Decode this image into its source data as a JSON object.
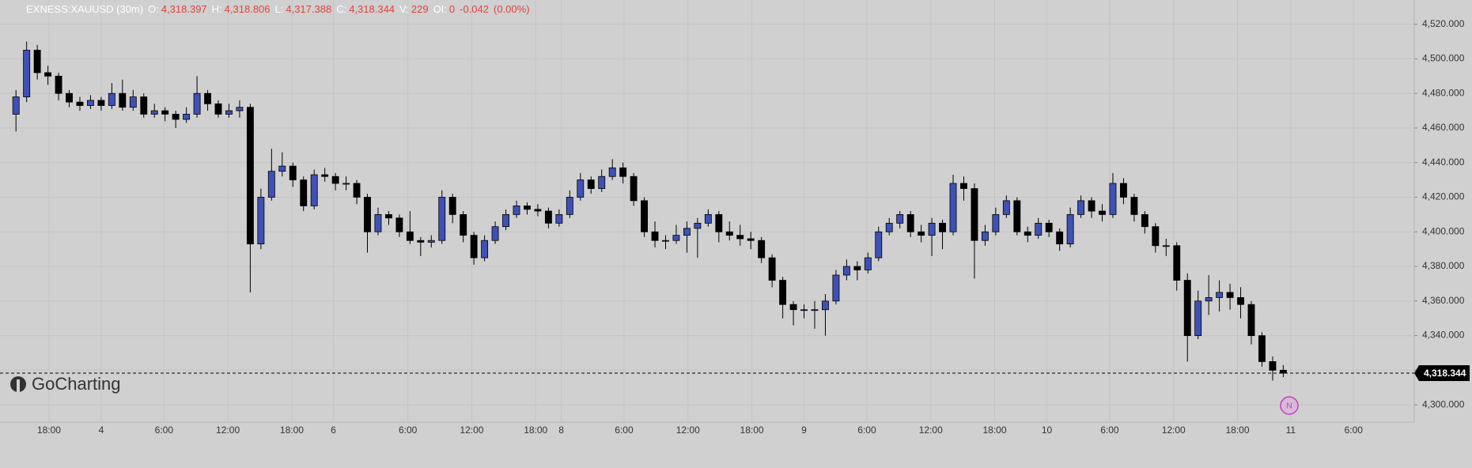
{
  "chart_data": {
    "type": "candlestick",
    "symbol": "EXNESS:XAUUSD (30m)",
    "quote": [
      {
        "label": "O:",
        "value": "4,318.397"
      },
      {
        "label": "H:",
        "value": "4,318.806"
      },
      {
        "label": "L:",
        "value": "4,317.388"
      },
      {
        "label": "C:",
        "value": "4,318.344"
      },
      {
        "label": "V:",
        "value": "229"
      },
      {
        "label": "OI:",
        "value": "0"
      }
    ],
    "change": "-0.042",
    "change_pct": "(0.00%)",
    "up_color": "#3f51b5",
    "down_color": "#000000",
    "grid": true,
    "ylim": [
      4290,
      4534
    ],
    "yticks": [
      {
        "value": 4300,
        "label": "4,300.000"
      },
      {
        "value": 4320,
        "label": "4,320.000"
      },
      {
        "value": 4340,
        "label": "4,340.000"
      },
      {
        "value": 4360,
        "label": "4,360.000"
      },
      {
        "value": 4380,
        "label": "4,380.000"
      },
      {
        "value": 4400,
        "label": "4,400.000"
      },
      {
        "value": 4420,
        "label": "4,420.000"
      },
      {
        "value": 4440,
        "label": "4,440.000"
      },
      {
        "value": 4460,
        "label": "4,460.000"
      },
      {
        "value": 4480,
        "label": "4,480.000"
      },
      {
        "value": 4500,
        "label": "4,500.000"
      },
      {
        "value": 4520,
        "label": "4,520.000"
      }
    ],
    "xlim": [
      -1.5,
      131.3
    ],
    "xticks": [
      {
        "value": 3.1,
        "label": "18:00"
      },
      {
        "value": 8.0,
        "label": "4"
      },
      {
        "value": 13.9,
        "label": "6:00"
      },
      {
        "value": 19.9,
        "label": "12:00"
      },
      {
        "value": 25.9,
        "label": "18:00"
      },
      {
        "value": 29.8,
        "label": "6"
      },
      {
        "value": 36.8,
        "label": "6:00"
      },
      {
        "value": 42.8,
        "label": "12:00"
      },
      {
        "value": 48.8,
        "label": "18:00"
      },
      {
        "value": 51.2,
        "label": "8"
      },
      {
        "value": 57.1,
        "label": "6:00"
      },
      {
        "value": 63.1,
        "label": "12:00"
      },
      {
        "value": 69.1,
        "label": "18:00"
      },
      {
        "value": 74.0,
        "label": "9"
      },
      {
        "value": 79.9,
        "label": "6:00"
      },
      {
        "value": 85.9,
        "label": "12:00"
      },
      {
        "value": 91.9,
        "label": "18:00"
      },
      {
        "value": 96.8,
        "label": "10"
      },
      {
        "value": 102.7,
        "label": "6:00"
      },
      {
        "value": 108.7,
        "label": "12:00"
      },
      {
        "value": 114.7,
        "label": "18:00"
      },
      {
        "value": 119.7,
        "label": "11"
      },
      {
        "value": 125.6,
        "label": "6:00"
      }
    ],
    "last_price": {
      "value": 4318.344,
      "label": "4,318.344"
    },
    "ohlc": [
      [
        4468,
        4482,
        4458,
        4478
      ],
      [
        4478,
        4510,
        4475,
        4505
      ],
      [
        4505,
        4508,
        4488,
        4492
      ],
      [
        4492,
        4496,
        4485,
        4490
      ],
      [
        4490,
        4492,
        4476,
        4480
      ],
      [
        4480,
        4482,
        4472,
        4475
      ],
      [
        4475,
        4478,
        4470,
        4473
      ],
      [
        4473,
        4479,
        4471,
        4476
      ],
      [
        4476,
        4478,
        4470,
        4473
      ],
      [
        4473,
        4486,
        4471,
        4480
      ],
      [
        4480,
        4488,
        4470,
        4472
      ],
      [
        4472,
        4482,
        4470,
        4478
      ],
      [
        4478,
        4480,
        4466,
        4468
      ],
      [
        4468,
        4474,
        4466,
        4470
      ],
      [
        4470,
        4472,
        4464,
        4468
      ],
      [
        4468,
        4470,
        4460,
        4465
      ],
      [
        4465,
        4472,
        4463,
        4468
      ],
      [
        4468,
        4490,
        4466,
        4480
      ],
      [
        4480,
        4482,
        4470,
        4474
      ],
      [
        4474,
        4476,
        4466,
        4468
      ],
      [
        4468,
        4474,
        4466,
        4470
      ],
      [
        4470,
        4476,
        4466,
        4472
      ],
      [
        4472,
        4474,
        4365,
        4393
      ],
      [
        4393,
        4425,
        4390,
        4420
      ],
      [
        4420,
        4448,
        4418,
        4435
      ],
      [
        4435,
        4446,
        4432,
        4438
      ],
      [
        4438,
        4440,
        4426,
        4430
      ],
      [
        4430,
        4432,
        4412,
        4415
      ],
      [
        4415,
        4436,
        4413,
        4433
      ],
      [
        4433,
        4437,
        4429,
        4432
      ],
      [
        4432,
        4434,
        4424,
        4428
      ],
      [
        4428,
        4432,
        4424,
        4428
      ],
      [
        4428,
        4430,
        4416,
        4420
      ],
      [
        4420,
        4422,
        4388,
        4400
      ],
      [
        4400,
        4414,
        4398,
        4410
      ],
      [
        4410,
        4412,
        4404,
        4408
      ],
      [
        4408,
        4410,
        4397,
        4400
      ],
      [
        4400,
        4412,
        4393,
        4395
      ],
      [
        4395,
        4397,
        4386,
        4394
      ],
      [
        4394,
        4398,
        4391,
        4395
      ],
      [
        4395,
        4424,
        4393,
        4420
      ],
      [
        4420,
        4422,
        4405,
        4410
      ],
      [
        4410,
        4412,
        4394,
        4398
      ],
      [
        4398,
        4400,
        4381,
        4385
      ],
      [
        4385,
        4398,
        4383,
        4395
      ],
      [
        4395,
        4406,
        4393,
        4403
      ],
      [
        4403,
        4413,
        4401,
        4410
      ],
      [
        4410,
        4418,
        4408,
        4415
      ],
      [
        4415,
        4417,
        4410,
        4413
      ],
      [
        4413,
        4416,
        4409,
        4412
      ],
      [
        4412,
        4414,
        4402,
        4405
      ],
      [
        4405,
        4413,
        4403,
        4410
      ],
      [
        4410,
        4424,
        4408,
        4420
      ],
      [
        4420,
        4434,
        4418,
        4430
      ],
      [
        4430,
        4432,
        4422,
        4425
      ],
      [
        4425,
        4436,
        4423,
        4432
      ],
      [
        4432,
        4442,
        4430,
        4437
      ],
      [
        4437,
        4440,
        4428,
        4432
      ],
      [
        4432,
        4434,
        4415,
        4418
      ],
      [
        4418,
        4420,
        4397,
        4400
      ],
      [
        4400,
        4406,
        4391,
        4395
      ],
      [
        4395,
        4398,
        4390,
        4395
      ],
      [
        4395,
        4404,
        4393,
        4398
      ],
      [
        4398,
        4406,
        4388,
        4402
      ],
      [
        4402,
        4408,
        4385,
        4405
      ],
      [
        4405,
        4413,
        4403,
        4410
      ],
      [
        4410,
        4412,
        4394,
        4400
      ],
      [
        4400,
        4406,
        4395,
        4398
      ],
      [
        4398,
        4404,
        4392,
        4396
      ],
      [
        4396,
        4400,
        4390,
        4395
      ],
      [
        4395,
        4397,
        4382,
        4385
      ],
      [
        4385,
        4387,
        4368,
        4372
      ],
      [
        4372,
        4374,
        4350,
        4358
      ],
      [
        4358,
        4360,
        4346,
        4355
      ],
      [
        4355,
        4358,
        4350,
        4355
      ],
      [
        4355,
        4360,
        4344,
        4355
      ],
      [
        4355,
        4364,
        4340,
        4360
      ],
      [
        4360,
        4378,
        4358,
        4375
      ],
      [
        4375,
        4384,
        4372,
        4380
      ],
      [
        4380,
        4383,
        4372,
        4378
      ],
      [
        4378,
        4388,
        4376,
        4385
      ],
      [
        4385,
        4403,
        4383,
        4400
      ],
      [
        4400,
        4408,
        4398,
        4405
      ],
      [
        4405,
        4412,
        4402,
        4410
      ],
      [
        4410,
        4412,
        4397,
        4400
      ],
      [
        4400,
        4404,
        4394,
        4398
      ],
      [
        4398,
        4408,
        4386,
        4405
      ],
      [
        4405,
        4407,
        4390,
        4400
      ],
      [
        4400,
        4433,
        4398,
        4428
      ],
      [
        4428,
        4432,
        4418,
        4425
      ],
      [
        4425,
        4428,
        4373,
        4395
      ],
      [
        4395,
        4404,
        4392,
        4400
      ],
      [
        4400,
        4414,
        4398,
        4410
      ],
      [
        4410,
        4421,
        4408,
        4418
      ],
      [
        4418,
        4420,
        4398,
        4400
      ],
      [
        4400,
        4403,
        4394,
        4398
      ],
      [
        4398,
        4408,
        4396,
        4405
      ],
      [
        4405,
        4407,
        4397,
        4400
      ],
      [
        4400,
        4402,
        4389,
        4393
      ],
      [
        4393,
        4414,
        4391,
        4410
      ],
      [
        4410,
        4421,
        4408,
        4418
      ],
      [
        4418,
        4420,
        4408,
        4412
      ],
      [
        4412,
        4416,
        4406,
        4410
      ],
      [
        4410,
        4434,
        4408,
        4428
      ],
      [
        4428,
        4431,
        4416,
        4420
      ],
      [
        4420,
        4422,
        4406,
        4410
      ],
      [
        4410,
        4412,
        4399,
        4403
      ],
      [
        4403,
        4405,
        4388,
        4392
      ],
      [
        4392,
        4396,
        4386,
        4392
      ],
      [
        4392,
        4394,
        4366,
        4372
      ],
      [
        4372,
        4376,
        4325,
        4340
      ],
      [
        4340,
        4366,
        4338,
        4360
      ],
      [
        4360,
        4375,
        4352,
        4362
      ],
      [
        4362,
        4372,
        4354,
        4365
      ],
      [
        4365,
        4370,
        4355,
        4362
      ],
      [
        4362,
        4368,
        4350,
        4358
      ],
      [
        4358,
        4360,
        4335,
        4340
      ],
      [
        4340,
        4342,
        4322,
        4325
      ],
      [
        4325,
        4328,
        4314,
        4320
      ],
      [
        4320,
        4323,
        4316,
        4318.344
      ]
    ]
  },
  "branding": "GoCharting",
  "marker": "N"
}
